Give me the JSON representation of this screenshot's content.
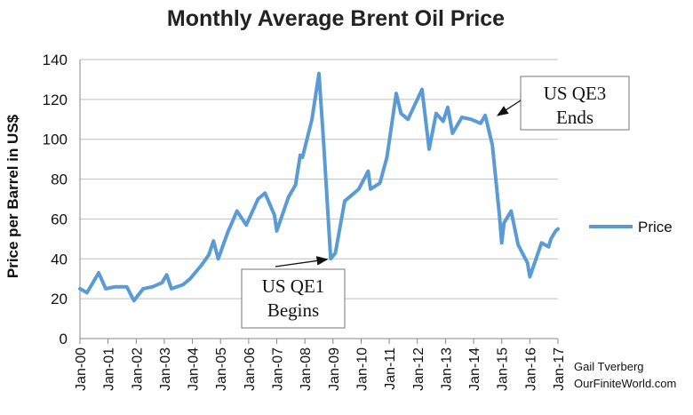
{
  "chart_data": {
    "type": "line",
    "title": "Monthly Average Brent Oil Price",
    "ylabel": "Price per Barrel in US$",
    "xlabel": "",
    "ylim": [
      0,
      140
    ],
    "yticks": [
      0,
      20,
      40,
      60,
      80,
      100,
      120,
      140
    ],
    "xticks": [
      "Jan-00",
      "Jan-01",
      "Jan-02",
      "Jan-03",
      "Jan-04",
      "Jan-05",
      "Jan-06",
      "Jan-07",
      "Jan-08",
      "Jan-09",
      "Jan-10",
      "Jan-11",
      "Jan-12",
      "Jan-13",
      "Jan-14",
      "Jan-15",
      "Jan-16",
      "Jan-17"
    ],
    "grid": "horizontal",
    "legend_position": "right",
    "series": [
      {
        "name": "Price",
        "color": "#5b9bd5",
        "points": [
          [
            "2000-01",
            25
          ],
          [
            "2000-04",
            23
          ],
          [
            "2000-09",
            33
          ],
          [
            "2000-12",
            25
          ],
          [
            "2001-04",
            26
          ],
          [
            "2001-09",
            26
          ],
          [
            "2001-12",
            19
          ],
          [
            "2002-04",
            25
          ],
          [
            "2002-08",
            26
          ],
          [
            "2002-12",
            28
          ],
          [
            "2003-02",
            32
          ],
          [
            "2003-04",
            25
          ],
          [
            "2003-09",
            27
          ],
          [
            "2003-12",
            30
          ],
          [
            "2004-05",
            37
          ],
          [
            "2004-08",
            42
          ],
          [
            "2004-10",
            49
          ],
          [
            "2004-12",
            40
          ],
          [
            "2005-04",
            53
          ],
          [
            "2005-08",
            64
          ],
          [
            "2005-12",
            57
          ],
          [
            "2006-05",
            70
          ],
          [
            "2006-08",
            73
          ],
          [
            "2006-12",
            62
          ],
          [
            "2007-01",
            54
          ],
          [
            "2007-06",
            71
          ],
          [
            "2007-09",
            77
          ],
          [
            "2007-11",
            92
          ],
          [
            "2007-12",
            91
          ],
          [
            "2008-04",
            110
          ],
          [
            "2008-07",
            133
          ],
          [
            "2008-09",
            98
          ],
          [
            "2008-12",
            40
          ],
          [
            "2009-02",
            43
          ],
          [
            "2009-06",
            69
          ],
          [
            "2009-10",
            73
          ],
          [
            "2009-12",
            75
          ],
          [
            "2010-04",
            84
          ],
          [
            "2010-05",
            75
          ],
          [
            "2010-09",
            78
          ],
          [
            "2010-12",
            91
          ],
          [
            "2011-04",
            123
          ],
          [
            "2011-06",
            113
          ],
          [
            "2011-09",
            110
          ],
          [
            "2012-03",
            125
          ],
          [
            "2012-06",
            95
          ],
          [
            "2012-09",
            113
          ],
          [
            "2012-12",
            109
          ],
          [
            "2013-02",
            116
          ],
          [
            "2013-04",
            103
          ],
          [
            "2013-08",
            111
          ],
          [
            "2013-12",
            110
          ],
          [
            "2014-04",
            108
          ],
          [
            "2014-06",
            112
          ],
          [
            "2014-09",
            97
          ],
          [
            "2014-12",
            62
          ],
          [
            "2015-01",
            48
          ],
          [
            "2015-02",
            58
          ],
          [
            "2015-05",
            64
          ],
          [
            "2015-08",
            47
          ],
          [
            "2015-12",
            38
          ],
          [
            "2016-01",
            31
          ],
          [
            "2016-06",
            48
          ],
          [
            "2016-09",
            46
          ],
          [
            "2016-10",
            50
          ],
          [
            "2016-12",
            54
          ],
          [
            "2017-01",
            55
          ]
        ]
      }
    ],
    "annotations": [
      {
        "lines": [
          "US QE1",
          "Begins"
        ],
        "target": [
          "2008-12",
          40
        ]
      },
      {
        "lines": [
          "US QE3",
          "Ends"
        ],
        "target": [
          "2014-10",
          111
        ]
      }
    ],
    "credit": [
      "Gail Tverberg",
      "OurFiniteWorld.com"
    ]
  }
}
